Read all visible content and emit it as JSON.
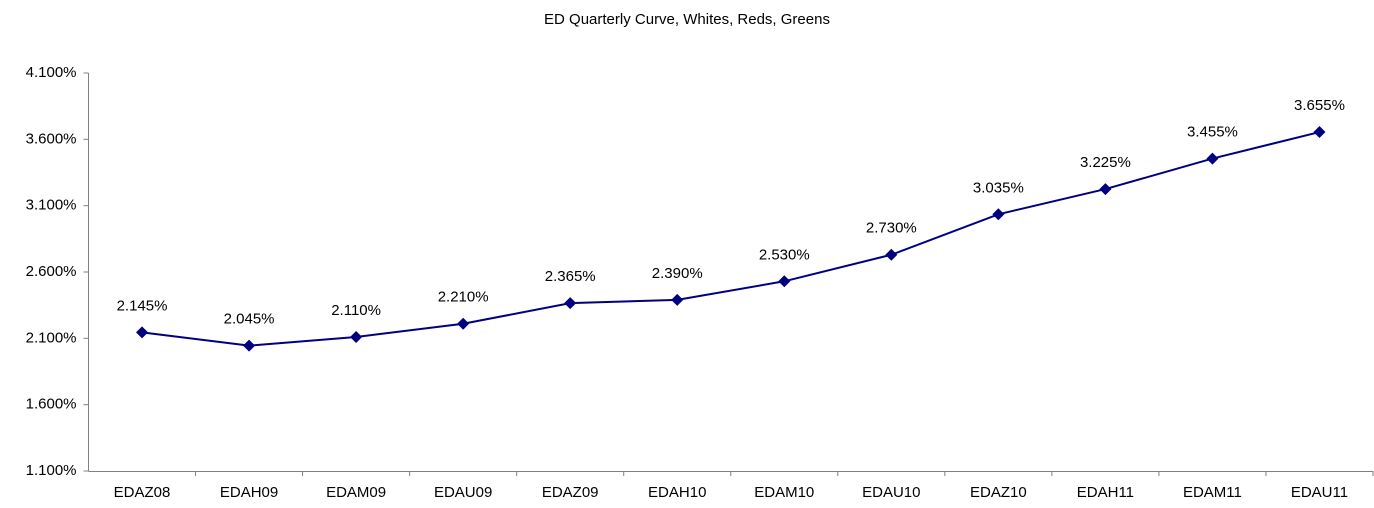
{
  "chart_data": {
    "type": "line",
    "title": "ED Quarterly Curve, Whites, Reds, Greens",
    "categories": [
      "EDAZ08",
      "EDAH09",
      "EDAM09",
      "EDAU09",
      "EDAZ09",
      "EDAH10",
      "EDAM10",
      "EDAU10",
      "EDAZ10",
      "EDAH11",
      "EDAM11",
      "EDAU11"
    ],
    "values": [
      2.145,
      2.045,
      2.11,
      2.21,
      2.365,
      2.39,
      2.53,
      2.73,
      3.035,
      3.225,
      3.455,
      3.655
    ],
    "value_labels": [
      "2.145%",
      "2.045%",
      "2.110%",
      "2.210%",
      "2.365%",
      "2.390%",
      "2.530%",
      "2.730%",
      "3.035%",
      "3.225%",
      "3.455%",
      "3.655%"
    ],
    "color": "#000080",
    "ylim": [
      1.1,
      4.1
    ],
    "yticks": [
      {
        "value": 1.1,
        "label": "1.100%"
      },
      {
        "value": 1.6,
        "label": "1.600%"
      },
      {
        "value": 2.1,
        "label": "2.100%"
      },
      {
        "value": 2.6,
        "label": "2.600%"
      },
      {
        "value": 3.1,
        "label": "3.100%"
      },
      {
        "value": 3.6,
        "label": "3.600%"
      },
      {
        "value": 4.1,
        "label": "4.100%"
      }
    ],
    "grid": false
  }
}
